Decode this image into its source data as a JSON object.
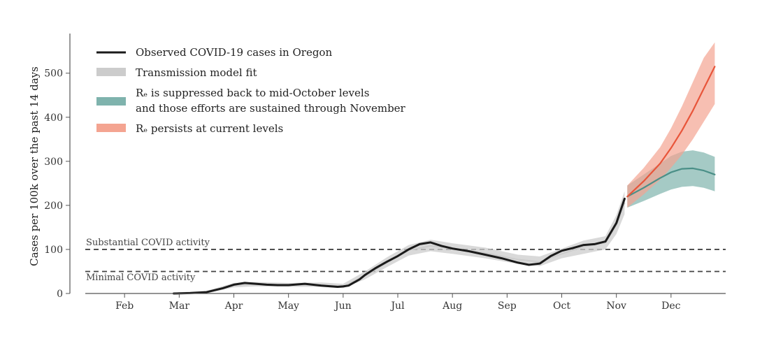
{
  "chart_data": {
    "type": "line",
    "title": "",
    "xlabel": "",
    "ylabel": "Cases per 100k over the past 14 days",
    "xlim": [
      0,
      12
    ],
    "ylim": [
      0,
      590
    ],
    "x_ticks": [
      "Feb",
      "Mar",
      "Apr",
      "May",
      "Jun",
      "Jul",
      "Aug",
      "Sep",
      "Oct",
      "Nov",
      "Dec"
    ],
    "y_ticks": [
      0,
      100,
      200,
      300,
      400,
      500
    ],
    "grid": false,
    "legend_position": "top-left",
    "reference_lines": [
      {
        "name": "Substantial COVID activity",
        "y": 100
      },
      {
        "name": "Minimal COVID activity",
        "y": 50
      }
    ],
    "legend": [
      {
        "label": "Observed COVID-19 cases in Oregon",
        "type": "line",
        "color": "#1a1a1a"
      },
      {
        "label": "Transmission model fit",
        "type": "band",
        "color": "#cccccc"
      },
      {
        "label_line1": "Rₑ is suppressed back to mid-October levels",
        "label_line2": "and those efforts are sustained through November",
        "type": "band",
        "color": "#7fb3ad"
      },
      {
        "label": "Rₑ persists at current levels",
        "type": "band",
        "color": "#f4a491"
      }
    ],
    "series": [
      {
        "name": "Observed COVID-19 cases in Oregon",
        "color": "#1a1a1a",
        "x": [
          1.9,
          2.2,
          2.5,
          2.8,
          3.0,
          3.2,
          3.4,
          3.6,
          3.8,
          4.0,
          4.3,
          4.6,
          4.9,
          5.0,
          5.1,
          5.2,
          5.3,
          5.4,
          5.6,
          5.8,
          6.0,
          6.2,
          6.4,
          6.6,
          6.8,
          7.0,
          7.3,
          7.6,
          7.9,
          8.2,
          8.4,
          8.6,
          8.8,
          9.0,
          9.2,
          9.4,
          9.6,
          9.8,
          10.0,
          10.15
        ],
        "y": [
          0,
          1,
          3,
          12,
          20,
          24,
          22,
          20,
          19,
          19,
          22,
          18,
          15,
          16,
          18,
          25,
          32,
          42,
          58,
          72,
          85,
          100,
          112,
          116,
          108,
          102,
          96,
          88,
          80,
          70,
          65,
          68,
          85,
          97,
          103,
          110,
          112,
          118,
          160,
          215
        ]
      },
      {
        "name": "Transmission model fit",
        "color": "#cccccc",
        "x": [
          1.9,
          2.5,
          3.0,
          3.4,
          4.0,
          4.6,
          5.0,
          5.4,
          5.8,
          6.2,
          6.6,
          7.0,
          7.6,
          8.2,
          8.6,
          9.0,
          9.4,
          9.8,
          10.0,
          10.15
        ],
        "y": [
          0,
          3,
          19,
          21,
          19,
          20,
          16,
          40,
          70,
          98,
          108,
          102,
          92,
          77,
          72,
          90,
          106,
          115,
          155,
          205
        ],
        "band_low": [
          0,
          0,
          14,
          16,
          15,
          15,
          12,
          32,
          60,
          86,
          96,
          90,
          80,
          67,
          62,
          80,
          90,
          100,
          135,
          180
        ],
        "band_high": [
          2,
          6,
          24,
          26,
          24,
          25,
          22,
          50,
          82,
          110,
          122,
          114,
          104,
          88,
          84,
          102,
          120,
          130,
          178,
          232
        ]
      },
      {
        "name": "Rₑ is suppressed back to mid-October levels",
        "color": "#4a8f87",
        "x": [
          10.2,
          10.5,
          10.8,
          11.0,
          11.2,
          11.4,
          11.6,
          11.8
        ],
        "y": [
          220,
          240,
          262,
          275,
          283,
          284,
          279,
          270
        ],
        "band_low": [
          195,
          210,
          226,
          236,
          242,
          244,
          240,
          232
        ],
        "band_high": [
          245,
          270,
          295,
          312,
          322,
          325,
          320,
          310
        ]
      },
      {
        "name": "Rₑ persists at current levels",
        "color": "#e8553a",
        "x": [
          10.2,
          10.5,
          10.8,
          11.0,
          11.2,
          11.4,
          11.6,
          11.8
        ],
        "y": [
          220,
          255,
          295,
          330,
          370,
          415,
          465,
          515
        ],
        "band_low": [
          195,
          225,
          258,
          285,
          315,
          350,
          390,
          430
        ],
        "band_high": [
          245,
          285,
          332,
          375,
          425,
          480,
          535,
          570
        ]
      }
    ]
  }
}
